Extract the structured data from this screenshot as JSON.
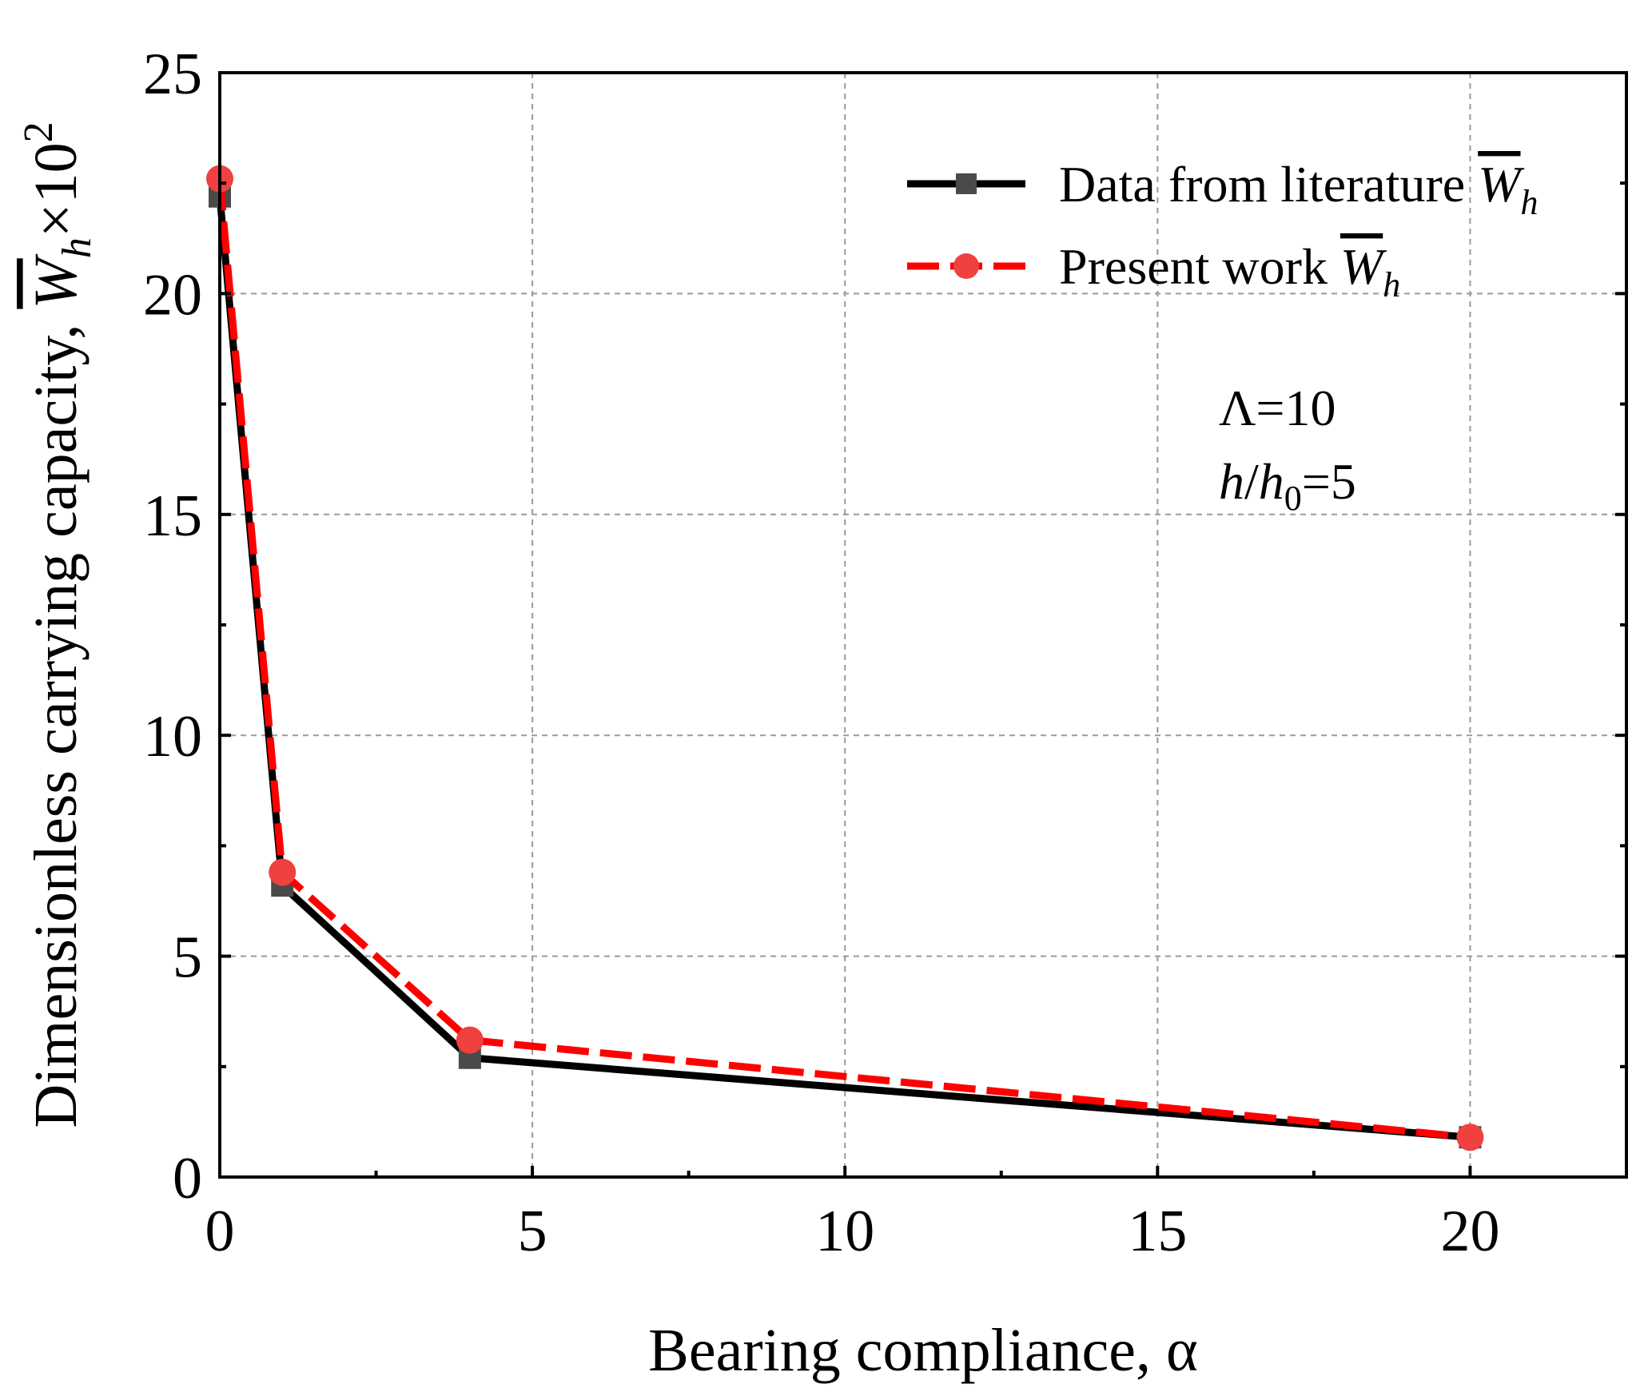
{
  "chart_data": {
    "type": "line",
    "title": "",
    "xlabel": "Bearing compliance, α",
    "ylabel_prefix": "Dimensionless carrying capacity, ",
    "ylabel_symbol": "W",
    "ylabel_subscript": "h",
    "ylabel_multiplier": "×10",
    "ylabel_exponent": "2",
    "xlim": [
      0,
      22.5
    ],
    "ylim": [
      0,
      25
    ],
    "x_ticks": [
      0,
      5,
      10,
      15,
      20
    ],
    "x_tick_labels": [
      "0",
      "5",
      "10",
      "15",
      "20"
    ],
    "y_ticks": [
      0,
      5,
      10,
      15,
      20,
      25
    ],
    "y_tick_labels": [
      "0",
      "5",
      "10",
      "15",
      "20",
      "25"
    ],
    "grid": true,
    "legend_position": "top-right",
    "series": [
      {
        "name": "Data from literature",
        "legend_symbol": "W",
        "legend_subscript": "h",
        "color": "#000000",
        "marker_color": "#4a4a4a",
        "marker": "square",
        "line_style": "solid",
        "x": [
          0,
          1,
          4,
          20
        ],
        "y": [
          22.2,
          6.6,
          2.7,
          0.9
        ]
      },
      {
        "name": "Present work",
        "legend_symbol": "W",
        "legend_subscript": "h",
        "color": "#ff0000",
        "marker_color": "#f04040",
        "marker": "circle",
        "line_style": "dashed",
        "x": [
          0,
          1,
          4,
          20
        ],
        "y": [
          22.6,
          6.9,
          3.1,
          0.9
        ]
      }
    ],
    "annotations": [
      {
        "symbol": "Λ",
        "value": "=10"
      },
      {
        "symbol": "h",
        "mid": "/",
        "symbol2": "h",
        "subscript": "0",
        "value": "=5"
      }
    ]
  }
}
